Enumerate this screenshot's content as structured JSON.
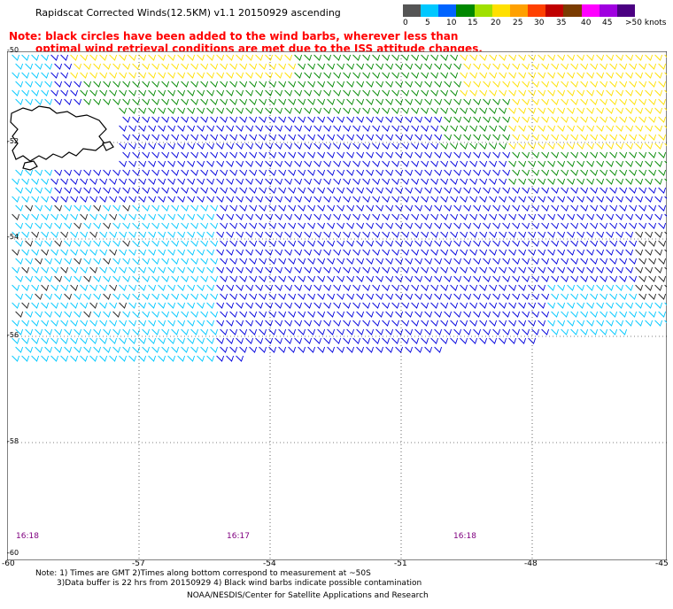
{
  "header": {
    "title": "Rapidscat Corrected Winds(12.5KM) v1.1 20150929 ascending",
    "note_line1": "Note: black circles have been added to the wind barbs, wherever less than",
    "note_line2": "optimal wind retrieval conditions are met due to the ISS attitude changes."
  },
  "legend": {
    "colors": [
      "#555555",
      "#00c8ff",
      "#0064ff",
      "#008800",
      "#a0e000",
      "#ffe000",
      "#ffa000",
      "#ff4000",
      "#c00000",
      "#7a3b00",
      "#ff00ff",
      "#a000e0",
      "#4b0082"
    ],
    "labels": [
      "0",
      "5",
      "10",
      "15",
      "20",
      "25",
      "30",
      "35",
      "40",
      "45",
      ">50 knots"
    ]
  },
  "axes": {
    "lat_labels": [
      "-50",
      "-52",
      "-54",
      "-56",
      "-58",
      "-60"
    ],
    "lon_labels": [
      "-60",
      "-57",
      "-54",
      "-51",
      "-48",
      "-45"
    ]
  },
  "times": [
    "16:18",
    "16:17",
    "16:18"
  ],
  "footer": {
    "note_line1": "Note: 1) Times are GMT 2)Times along bottom correspond to measurement at ~50S",
    "note_line2": "3)Data buffer is 22 hrs from 20150929 4) Black wind barbs indicate possible contamination",
    "credit": "NOAA/NESDIS/Center for Satellite Applications and Research"
  }
}
